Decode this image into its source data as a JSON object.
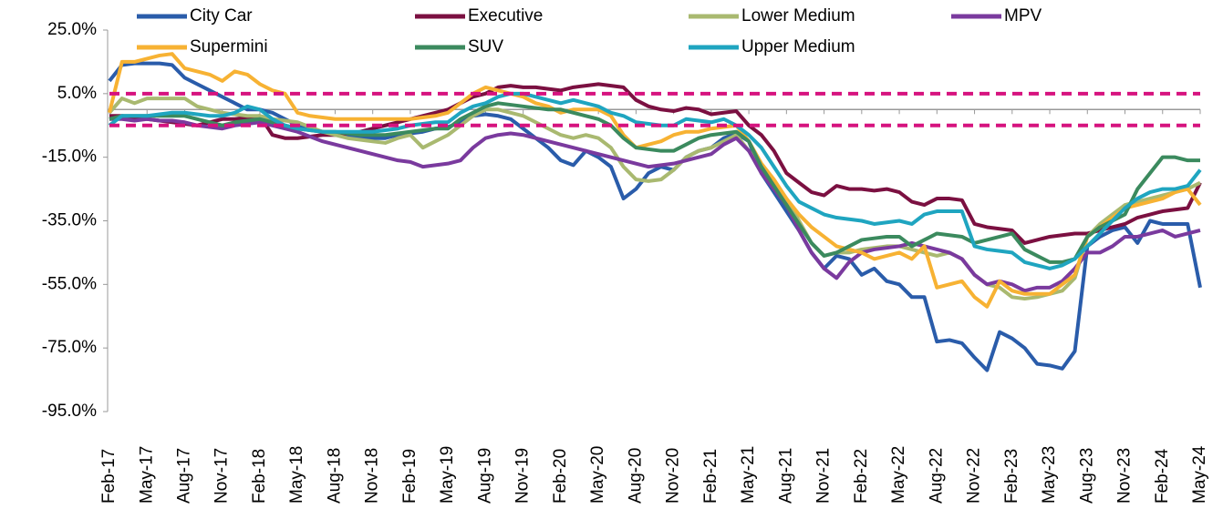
{
  "chart_data": {
    "type": "line",
    "categories": [
      "Feb-17",
      null,
      null,
      "May-17",
      null,
      null,
      "Aug-17",
      null,
      null,
      "Nov-17",
      null,
      null,
      "Feb-18",
      null,
      null,
      "May-18",
      null,
      null,
      "Aug-18",
      null,
      null,
      "Nov-18",
      null,
      null,
      "Feb-19",
      null,
      null,
      "May-19",
      null,
      null,
      "Aug-19",
      null,
      null,
      "Nov-19",
      null,
      null,
      "Feb-20",
      null,
      null,
      "May-20",
      null,
      null,
      "Aug-20",
      null,
      null,
      "Nov-20",
      null,
      null,
      "Feb-21",
      null,
      null,
      "May-21",
      null,
      null,
      "Aug-21",
      null,
      null,
      "Nov-21",
      null,
      null,
      "Feb-22",
      null,
      null,
      "May-22",
      null,
      null,
      "Aug-22",
      null,
      null,
      "Nov-22",
      null,
      null,
      "Feb-23",
      null,
      null,
      "May-23",
      null,
      null,
      "Aug-23",
      null,
      null,
      "Nov-23",
      null,
      null,
      "Feb-24",
      null,
      null,
      "May-24"
    ],
    "series": [
      {
        "name": "City Car",
        "color": "#2a5caa",
        "values": [
          9,
          14,
          14.5,
          14.5,
          14.5,
          14,
          10,
          8,
          6,
          4,
          2,
          0,
          0,
          -1,
          -3,
          -5,
          -6,
          -7,
          -7.5,
          -8,
          -8.5,
          -9,
          -9,
          -8,
          -7.5,
          -7,
          -6,
          -5.5,
          -4,
          -2,
          -1.5,
          -2,
          -3,
          -6,
          -9,
          -12,
          -16,
          -17.5,
          -13,
          -15,
          -18,
          -28,
          -25,
          -20,
          -18,
          -19,
          -15,
          -13,
          -12,
          -9,
          -7.5,
          -10,
          -20,
          -26,
          -32,
          -38,
          -45,
          -50,
          -46,
          -47,
          -52,
          -50,
          -54,
          -55,
          -59,
          -59,
          -73,
          -72.5,
          -73.5,
          -78,
          -82,
          -70,
          -72,
          -75,
          -80,
          -80.5,
          -81.5,
          -76,
          -43,
          -40,
          -38,
          -37,
          -42,
          -35,
          -36,
          -36,
          -36,
          -56
        ]
      },
      {
        "name": "Executive",
        "color": "#7b1041",
        "values": [
          -2,
          -2,
          -2.5,
          -3,
          -3.5,
          -4,
          -4.5,
          -5,
          -4,
          -3,
          -3,
          -2.5,
          -2,
          -8,
          -9,
          -9,
          -8.5,
          -8,
          -8,
          -7.5,
          -7,
          -6,
          -5,
          -4,
          -3,
          -2,
          -1,
          0,
          2,
          4,
          5,
          7,
          7.5,
          7,
          7,
          6.5,
          6,
          7,
          7.5,
          8,
          7.5,
          7,
          3,
          1,
          0,
          -0.5,
          0.5,
          0,
          -1.5,
          -1,
          -0.5,
          -5,
          -8,
          -13,
          -20,
          -23,
          -26,
          -27,
          -24,
          -25,
          -25,
          -25.5,
          -25,
          -26,
          -29,
          -30,
          -28,
          -28,
          -28.5,
          -36,
          -37,
          -37.5,
          -38,
          -42,
          -41,
          -40,
          -39.5,
          -39,
          -39,
          -38,
          -37,
          -36,
          -34,
          -33,
          -32,
          -31.5,
          -31,
          -23
        ]
      },
      {
        "name": "Lower Medium",
        "color": "#a9b970",
        "values": [
          -1,
          3.5,
          2,
          3.5,
          3.5,
          3.5,
          3.5,
          1,
          0,
          -1,
          -1.5,
          -2,
          -2,
          -3,
          -3.5,
          -4,
          -5.5,
          -7,
          -8,
          -9,
          -9.5,
          -10,
          -10.5,
          -9,
          -8,
          -12,
          -10,
          -8,
          -5,
          -2,
          0,
          0,
          -1,
          -2,
          -4,
          -6,
          -8,
          -9,
          -8,
          -9,
          -12,
          -18,
          -22,
          -22.5,
          -22,
          -19,
          -15,
          -13,
          -12,
          -10,
          -8,
          -13,
          -18,
          -23,
          -28,
          -35,
          -42,
          -46,
          -45,
          -45,
          -44,
          -43.5,
          -43,
          -43,
          -44,
          -45,
          -46,
          -45,
          -47,
          -52,
          -55,
          -56,
          -59,
          -59.5,
          -59,
          -58,
          -57,
          -53,
          -40,
          -36,
          -33,
          -30,
          -29,
          -28,
          -27,
          -26,
          -25,
          -23
        ]
      },
      {
        "name": "MPV",
        "color": "#7a3a9e",
        "values": [
          -3,
          -3,
          -3.5,
          -3,
          -3.5,
          -3.5,
          -4,
          -5,
          -5.5,
          -6,
          -5,
          -4.5,
          -4,
          -5,
          -6,
          -7,
          -8.5,
          -10,
          -11,
          -12,
          -13,
          -14,
          -15,
          -16,
          -16.5,
          -18,
          -17.5,
          -17,
          -16,
          -12,
          -9,
          -8,
          -7.5,
          -8,
          -9,
          -10,
          -11,
          -12,
          -13,
          -14,
          -15,
          -16,
          -17,
          -18,
          -17.5,
          -17,
          -16,
          -15,
          -14,
          -11,
          -9,
          -13,
          -20,
          -25,
          -30,
          -38,
          -45,
          -50,
          -53,
          -48,
          -45,
          -44,
          -43.5,
          -43,
          -42,
          -43,
          -44,
          -45,
          -47,
          -52,
          -55,
          -54,
          -55,
          -57,
          -56,
          -56,
          -54,
          -50,
          -45,
          -45,
          -43,
          -40,
          -40,
          -39,
          -38,
          -40,
          -39,
          -38
        ]
      },
      {
        "name": "Supermini",
        "color": "#f7b233",
        "values": [
          -1,
          15,
          15,
          16,
          17,
          17.5,
          13,
          12,
          11,
          9,
          12,
          11,
          8,
          6,
          5,
          -1,
          -2,
          -2.5,
          -3,
          -3,
          -3,
          -3,
          -3,
          -3,
          -3,
          -2.5,
          -2,
          -1,
          2,
          5,
          7,
          6,
          5,
          4,
          2,
          1,
          -1,
          0,
          0,
          0,
          -2,
          -8,
          -12,
          -11,
          -10,
          -8,
          -7,
          -7,
          -6,
          -5.5,
          -5,
          -10,
          -17,
          -22,
          -28,
          -33,
          -37,
          -40,
          -43,
          -44,
          -45,
          -47,
          -46,
          -45,
          -47,
          -43,
          -56,
          -55,
          -54,
          -59,
          -62,
          -54,
          -57,
          -58,
          -58,
          -58,
          -55,
          -52,
          -40,
          -37,
          -34,
          -31,
          -30,
          -29,
          -28,
          -26,
          -25,
          -30
        ]
      },
      {
        "name": "SUV",
        "color": "#3b8a5e",
        "values": [
          -3,
          -2,
          -2,
          -2,
          -2,
          -2,
          -2,
          -3,
          -4,
          -5,
          -4,
          -3.5,
          -3,
          -4,
          -5,
          -6,
          -6.5,
          -7,
          -7,
          -7.5,
          -8,
          -8,
          -8,
          -7.5,
          -7,
          -6.5,
          -6,
          -6,
          -3,
          -1,
          1,
          2,
          1.5,
          1,
          0.5,
          0,
          0,
          -1,
          -2,
          -3,
          -5,
          -9,
          -12,
          -12.5,
          -13,
          -13,
          -11,
          -9,
          -8,
          -7.5,
          -7,
          -10,
          -18,
          -24,
          -30,
          -36,
          -42,
          -46,
          -45,
          -43,
          -41,
          -40.5,
          -40,
          -40,
          -43,
          -41,
          -39,
          -39.5,
          -40,
          -42,
          -41,
          -40,
          -39,
          -44,
          -46,
          -48,
          -48,
          -47,
          -40,
          -37,
          -35,
          -33,
          -25,
          -20,
          -15,
          -15,
          -16,
          -16
        ]
      },
      {
        "name": "Upper Medium",
        "color": "#1fa5c0",
        "values": [
          -5,
          -2,
          -2,
          -2,
          -1.5,
          -1,
          -1,
          -1.5,
          -2,
          -2,
          -1,
          1,
          0,
          -3,
          -5,
          -6,
          -6.5,
          -7,
          -7,
          -7,
          -7,
          -7,
          -6.5,
          -6,
          -5,
          -4.5,
          -4,
          -4,
          -1,
          1,
          2,
          4,
          5,
          5,
          4,
          3,
          2,
          3,
          2,
          1,
          -1,
          -2,
          -4,
          -4.5,
          -5,
          -5,
          -3,
          -3.5,
          -4,
          -3,
          -5,
          -8,
          -12,
          -18,
          -24,
          -29,
          -31,
          -33,
          -34,
          -34.5,
          -35,
          -36,
          -35.5,
          -35,
          -36,
          -33,
          -32,
          -32,
          -32,
          -43,
          -44,
          -44.5,
          -45,
          -48,
          -49,
          -50,
          -49,
          -47,
          -43,
          -39,
          -35,
          -31,
          -28,
          -26,
          -25,
          -25,
          -24,
          -19
        ]
      }
    ],
    "ylim": [
      -95,
      25
    ],
    "yticks": [
      {
        "value": -95,
        "label": "-95.0%"
      },
      {
        "value": -75,
        "label": "-75.0%"
      },
      {
        "value": -55,
        "label": "-55.0%"
      },
      {
        "value": -35,
        "label": "-35.0%"
      },
      {
        "value": -15,
        "label": "-15.0%"
      },
      {
        "value": 5,
        "label": "5.0%"
      },
      {
        "value": 25,
        "label": "25.0%"
      }
    ],
    "reference_lines": [
      5,
      -5
    ],
    "reference_color": "#d6137f",
    "legend": "top"
  }
}
